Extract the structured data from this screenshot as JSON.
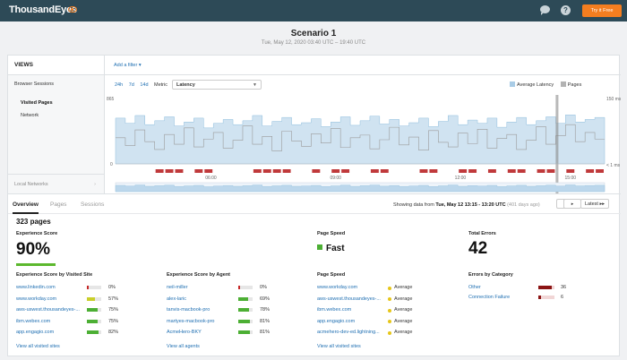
{
  "app": {
    "logo_text": "ThousandEyes",
    "try_label": "Try it Free"
  },
  "header": {
    "title": "Scenario 1",
    "date": "Tue, May 12, 2020 03:40 UTC – 19:40 UTC"
  },
  "views": {
    "title": "VIEWS",
    "items": [
      "Browser Sessions",
      "Visited Pages",
      "Network"
    ],
    "local_networks": "Local Networks"
  },
  "filter": {
    "add_label": "Add a filter ▾"
  },
  "controls": {
    "ranges": [
      "24h",
      "7d",
      "14d"
    ],
    "metric_label": "Metric",
    "metric_value": "Latency"
  },
  "legend": [
    {
      "label": "Average Latency",
      "color": "#a9cce6"
    },
    {
      "label": "Pages",
      "color": "#b3b3b3"
    }
  ],
  "chart_data": {
    "type": "area",
    "series": [
      {
        "name": "Average Latency",
        "values": [
          70,
          62,
          74,
          60,
          66,
          72,
          58,
          64,
          70,
          55,
          62,
          68,
          60,
          66,
          74,
          58,
          65,
          71,
          60,
          63,
          69,
          57,
          64,
          72,
          59,
          66,
          73,
          61,
          68,
          58,
          63,
          70,
          57,
          65,
          74,
          60,
          67,
          62,
          70,
          56,
          64,
          71,
          60,
          66,
          72,
          62,
          75,
          64,
          68,
          71
        ]
      },
      {
        "name": "Pages",
        "values": [
          40,
          28,
          52,
          34,
          22,
          45,
          30,
          55,
          26,
          38,
          48,
          24,
          36,
          58,
          30,
          42,
          20,
          50,
          35,
          27,
          46,
          32,
          54,
          25,
          40,
          44,
          23,
          37,
          56,
          29,
          41,
          21,
          51,
          33,
          26,
          47,
          31,
          53,
          24,
          39,
          45,
          22,
          36,
          57,
          30,
          43,
          60,
          34,
          48,
          38
        ]
      }
    ],
    "y_left_top_label": "865",
    "y_left_bottom_label": "0",
    "y_right_top_label": "150 ms",
    "y_right_bottom_label": "< 1 ms",
    "x_ticks": [
      "06:00",
      "09:00",
      "12:00",
      "15:00"
    ],
    "selected_index": 45
  },
  "tabs": {
    "items": [
      "Overview",
      "Pages",
      "Sessions"
    ],
    "active": "Overview"
  },
  "showing": {
    "prefix": "Showing data from",
    "range": "Tue, May 12 13:15 - 13:20 UTC",
    "ago": "(401 days ago)",
    "prev": "◂",
    "next": "▸",
    "latest": "Latest ▸▸"
  },
  "summary": {
    "pages_count": "323 pages",
    "experience_label": "Experience Score",
    "experience_value": "90%",
    "speed_label": "Page Speed",
    "speed_value": "Fast",
    "errors_label": "Total Errors",
    "errors_value": "42"
  },
  "by_site": {
    "title": "Experience Score by Visited Site",
    "rows": [
      {
        "name": "www.linkedin.com",
        "value": "0%",
        "fraction": 0.0,
        "color": "#c62828"
      },
      {
        "name": "www.workday.com",
        "value": "57%",
        "fraction": 0.57,
        "color": "#c9cf2a"
      },
      {
        "name": "aws-uswest.thousandeyes-...",
        "value": "75%",
        "fraction": 0.75,
        "color": "#4caf34"
      },
      {
        "name": "ibm.webex.com",
        "value": "75%",
        "fraction": 0.75,
        "color": "#4caf34"
      },
      {
        "name": "app.engagio.com",
        "value": "82%",
        "fraction": 0.82,
        "color": "#4caf34"
      }
    ],
    "view_all": "View all visited sites"
  },
  "by_agent": {
    "title": "Experience Score by Agent",
    "rows": [
      {
        "name": "neil-miller",
        "value": "0%",
        "fraction": 0.0,
        "color": "#c62828"
      },
      {
        "name": "alex-laric",
        "value": "69%",
        "fraction": 0.69,
        "color": "#4caf34"
      },
      {
        "name": "tanvis-macbook-pro",
        "value": "78%",
        "fraction": 0.78,
        "color": "#4caf34"
      },
      {
        "name": "martyes-macbook-pro",
        "value": "81%",
        "fraction": 0.81,
        "color": "#4caf34"
      },
      {
        "name": "AcmeHero-BKY",
        "value": "81%",
        "fraction": 0.81,
        "color": "#4caf34"
      }
    ],
    "view_all": "View all agents"
  },
  "page_speed": {
    "title": "Page Speed",
    "rows": [
      {
        "name": "www.workday.com",
        "value": "Average"
      },
      {
        "name": "aws-uswest.thousandeyes-...",
        "value": "Average"
      },
      {
        "name": "ibm.webex.com",
        "value": "Average"
      },
      {
        "name": "app.engagio.com",
        "value": "Average"
      },
      {
        "name": "acmehero-dev-ed.lightning...",
        "value": "Average"
      }
    ],
    "view_all": "View all visited sites"
  },
  "errors_by_category": {
    "title": "Errors by Category",
    "rows": [
      {
        "name": "Other",
        "value": "36",
        "fraction": 0.86
      },
      {
        "name": "Connection Failure",
        "value": "6",
        "fraction": 0.14
      }
    ]
  }
}
